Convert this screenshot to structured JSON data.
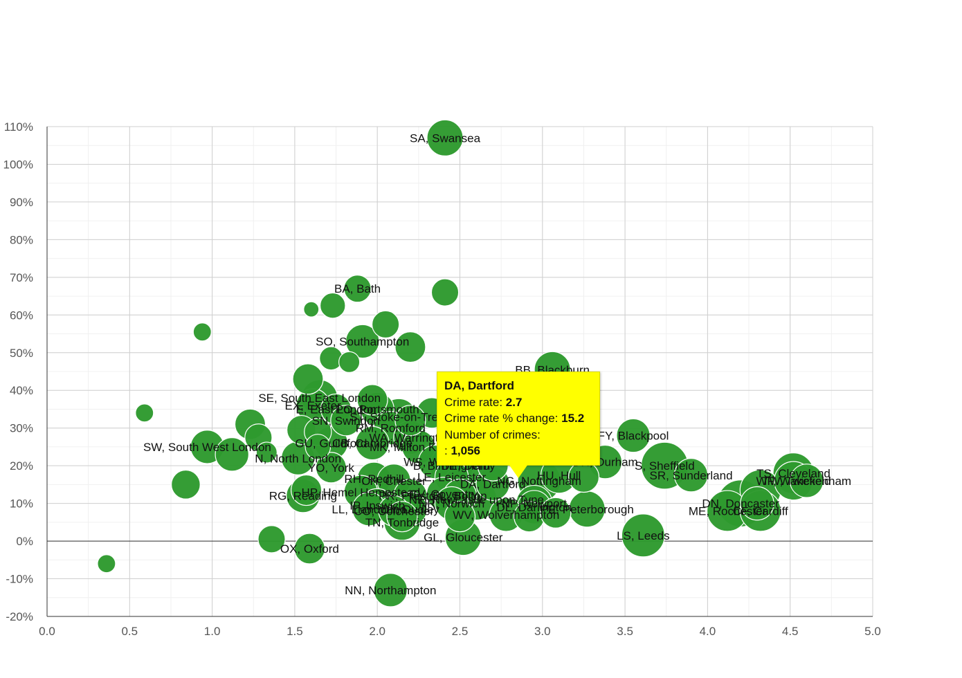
{
  "chart_data": {
    "type": "scatter",
    "x_ticks": [
      "0.0",
      "0.5",
      "1.0",
      "1.5",
      "2.0",
      "2.5",
      "3.0",
      "3.5",
      "4.0",
      "4.5",
      "5.0"
    ],
    "y_ticks": [
      "110%",
      "100%",
      "90%",
      "80%",
      "70%",
      "60%",
      "50%",
      "40%",
      "30%",
      "20%",
      "10%",
      "0%",
      "-10%",
      "-20%"
    ],
    "xlim": [
      0,
      5
    ],
    "ylim": [
      -20,
      110
    ],
    "colors": {
      "bubble": "#2e9a2e",
      "bubble_stroke": "#ffffff"
    },
    "points": [
      {
        "label": "SA, Swansea",
        "x": 2.41,
        "y": 107,
        "size": 6
      },
      {
        "label": "BA, Bath",
        "x": 1.88,
        "y": 67,
        "size": 3
      },
      {
        "label": "",
        "x": 2.41,
        "y": 66,
        "size": 3
      },
      {
        "label": "",
        "x": 1.73,
        "y": 62.5,
        "size": 2.5
      },
      {
        "label": "",
        "x": 1.6,
        "y": 61.5,
        "size": 0.6
      },
      {
        "label": "",
        "x": 2.05,
        "y": 57.5,
        "size": 3
      },
      {
        "label": "",
        "x": 0.94,
        "y": 55.5,
        "size": 1
      },
      {
        "label": "SO, Southampton",
        "x": 1.91,
        "y": 53,
        "size": 5
      },
      {
        "label": "",
        "x": 2.2,
        "y": 51.5,
        "size": 4
      },
      {
        "label": "",
        "x": 1.72,
        "y": 48.5,
        "size": 2
      },
      {
        "label": "",
        "x": 1.83,
        "y": 47.5,
        "size": 1.5
      },
      {
        "label": "BB, Blackburn",
        "x": 3.06,
        "y": 45.5,
        "size": 6
      },
      {
        "label": "",
        "x": 1.58,
        "y": 43,
        "size": 4
      },
      {
        "label": "SE, South East London",
        "x": 1.65,
        "y": 38,
        "size": 6
      },
      {
        "label": "",
        "x": 1.97,
        "y": 37.5,
        "size": 4
      },
      {
        "label": "EX, Exeter",
        "x": 1.61,
        "y": 36,
        "size": 5
      },
      {
        "label": "E, East London",
        "x": 1.75,
        "y": 35,
        "size": 4
      },
      {
        "label": "PO, Portsmouth",
        "x": 2.0,
        "y": 35,
        "size": 5
      },
      {
        "label": "",
        "x": 0.59,
        "y": 34,
        "size": 1
      },
      {
        "label": "",
        "x": 2.33,
        "y": 34,
        "size": 4
      },
      {
        "label": "ST, Stoke-on-Trent",
        "x": 2.13,
        "y": 33,
        "size": 6
      },
      {
        "label": "SN, Swindon",
        "x": 1.81,
        "y": 32,
        "size": 4
      },
      {
        "label": "",
        "x": 2.2,
        "y": 32,
        "size": 4
      },
      {
        "label": "",
        "x": 1.23,
        "y": 31,
        "size": 4
      },
      {
        "label": "RM, Romford",
        "x": 2.08,
        "y": 30,
        "size": 5
      },
      {
        "label": "",
        "x": 1.54,
        "y": 29.5,
        "size": 3.5
      },
      {
        "label": "",
        "x": 1.64,
        "y": 29,
        "size": 3
      },
      {
        "label": "",
        "x": 2.45,
        "y": 28,
        "size": 4
      },
      {
        "label": "FY, Blackpool",
        "x": 3.55,
        "y": 28,
        "size": 5
      },
      {
        "label": "WA, Warrington",
        "x": 2.2,
        "y": 27.5,
        "size": 5
      },
      {
        "label": "",
        "x": 1.28,
        "y": 27.5,
        "size": 3
      },
      {
        "label": "GU, Guildford",
        "x": 1.72,
        "y": 26,
        "size": 5
      },
      {
        "label": "CB, Cambridge",
        "x": 1.97,
        "y": 26,
        "size": 5
      },
      {
        "label": "MK, Milton Keynes",
        "x": 2.25,
        "y": 25,
        "size": 5
      },
      {
        "label": "SW, South West London",
        "x": 0.97,
        "y": 25,
        "size": 5
      },
      {
        "label": "",
        "x": 1.64,
        "y": 25,
        "size": 2.5
      },
      {
        "label": "",
        "x": 1.12,
        "y": 23,
        "size": 5
      },
      {
        "label": "",
        "x": 1.33,
        "y": 23.5,
        "size": 1.5
      },
      {
        "label": "N, North London",
        "x": 1.52,
        "y": 22,
        "size": 5
      },
      {
        "label": "WS, Walsall",
        "x": 2.35,
        "y": 21,
        "size": 5
      },
      {
        "label": "DH, Durham",
        "x": 3.38,
        "y": 21,
        "size": 5
      },
      {
        "label": "B, Birmingham",
        "x": 2.45,
        "y": 20,
        "size": 9
      },
      {
        "label": "DE, Derby",
        "x": 2.55,
        "y": 20,
        "size": 6
      },
      {
        "label": "",
        "x": 2.7,
        "y": 20,
        "size": 4
      },
      {
        "label": "S, Sheffield",
        "x": 3.74,
        "y": 20,
        "size": 11
      },
      {
        "label": "YO, York",
        "x": 1.72,
        "y": 19.5,
        "size": 4
      },
      {
        "label": "TS, Cleveland",
        "x": 4.52,
        "y": 18,
        "size": 8
      },
      {
        "label": "SR, Sunderland",
        "x": 3.9,
        "y": 17.5,
        "size": 5
      },
      {
        "label": "HU, Hull",
        "x": 3.1,
        "y": 17.5,
        "size": 6
      },
      {
        "label": "LE, Leicester",
        "x": 2.45,
        "y": 17,
        "size": 5
      },
      {
        "label": "RH, Redhill",
        "x": 1.98,
        "y": 16.5,
        "size": 5
      },
      {
        "label": "WF, Wakefield",
        "x": 4.52,
        "y": 16,
        "size": 7
      },
      {
        "label": "TW, Twickenham",
        "x": 4.6,
        "y": 16,
        "size": 5
      },
      {
        "label": "NG, Nottingham",
        "x": 2.98,
        "y": 16,
        "size": 9
      },
      {
        "label": "CH, Chester",
        "x": 2.1,
        "y": 16,
        "size": 5
      },
      {
        "label": "",
        "x": 3.25,
        "y": 17,
        "size": 4
      },
      {
        "label": "DA, Dartford",
        "x": 2.7,
        "y": 15.2,
        "size": 5
      },
      {
        "label": "",
        "x": 0.84,
        "y": 15,
        "size": 3.5
      },
      {
        "label": "HP, Hemel Hempstead",
        "x": 1.9,
        "y": 13,
        "size": 5
      },
      {
        "label": "",
        "x": 1.57,
        "y": 13.5,
        "size": 4
      },
      {
        "label": "",
        "x": 4.32,
        "y": 13.5,
        "size": 8
      },
      {
        "label": "RG, Reading",
        "x": 1.55,
        "y": 12,
        "size": 5
      },
      {
        "label": "PR, Preston",
        "x": 2.2,
        "y": 12,
        "size": 5
      },
      {
        "label": "NE, Newcastle upon Tyne",
        "x": 2.6,
        "y": 11,
        "size": 8
      },
      {
        "label": "CV, Coventry",
        "x": 2.4,
        "y": 12.5,
        "size": 5
      },
      {
        "label": "BL, Bolton",
        "x": 2.5,
        "y": 12,
        "size": 5
      },
      {
        "label": "NP, Newport",
        "x": 2.95,
        "y": 10,
        "size": 6
      },
      {
        "label": "NR, Norwich",
        "x": 2.45,
        "y": 10,
        "size": 5
      },
      {
        "label": "DN, Doncaster",
        "x": 4.2,
        "y": 10,
        "size": 11
      },
      {
        "label": "",
        "x": 4.3,
        "y": 10,
        "size": 5
      },
      {
        "label": "IP, Ipswich",
        "x": 2.0,
        "y": 9.5,
        "size": 5
      },
      {
        "label": "DL, Darlington",
        "x": 2.95,
        "y": 9,
        "size": 5
      },
      {
        "label": "DY, Dudley",
        "x": 2.2,
        "y": 8.5,
        "size": 5
      },
      {
        "label": "CO, Colchester",
        "x": 2.1,
        "y": 8,
        "size": 4
      },
      {
        "label": "LL, Llandudno",
        "x": 1.95,
        "y": 8.5,
        "size": 5
      },
      {
        "label": "ME, Rochester",
        "x": 4.12,
        "y": 8,
        "size": 8
      },
      {
        "label": "CF, Cardiff",
        "x": 4.32,
        "y": 8,
        "size": 8
      },
      {
        "label": "PE, Peterborough",
        "x": 3.27,
        "y": 8.5,
        "size": 6
      },
      {
        "label": "TN, Tonbridge",
        "x": 2.15,
        "y": 5,
        "size": 6
      },
      {
        "label": "WV, Wolverhampton",
        "x": 2.78,
        "y": 7,
        "size": 5
      },
      {
        "label": "",
        "x": 2.92,
        "y": 6.5,
        "size": 4
      },
      {
        "label": "",
        "x": 3.08,
        "y": 7.5,
        "size": 4
      },
      {
        "label": "",
        "x": 2.5,
        "y": 6.5,
        "size": 4
      },
      {
        "label": "",
        "x": 2.15,
        "y": 6.5,
        "size": 4
      },
      {
        "label": "LS, Leeds",
        "x": 3.61,
        "y": 1.5,
        "size": 9
      },
      {
        "label": "GL, Gloucester",
        "x": 2.52,
        "y": 1,
        "size": 6
      },
      {
        "label": "",
        "x": 1.36,
        "y": 0.5,
        "size": 3
      },
      {
        "label": "OX, Oxford",
        "x": 1.59,
        "y": -2,
        "size": 4
      },
      {
        "label": "",
        "x": 0.36,
        "y": -6,
        "size": 1
      },
      {
        "label": "NN, Northampton",
        "x": 2.08,
        "y": -13,
        "size": 5
      }
    ]
  },
  "tooltip": {
    "title": "DA, Dartford",
    "rate_label": "Crime rate: ",
    "rate_value": "2.7",
    "change_label": "Crime rate % change: ",
    "change_value": "15.2",
    "count_label": "Number of crimes:",
    "count_prefix": ": ",
    "count_value": "1,056"
  }
}
